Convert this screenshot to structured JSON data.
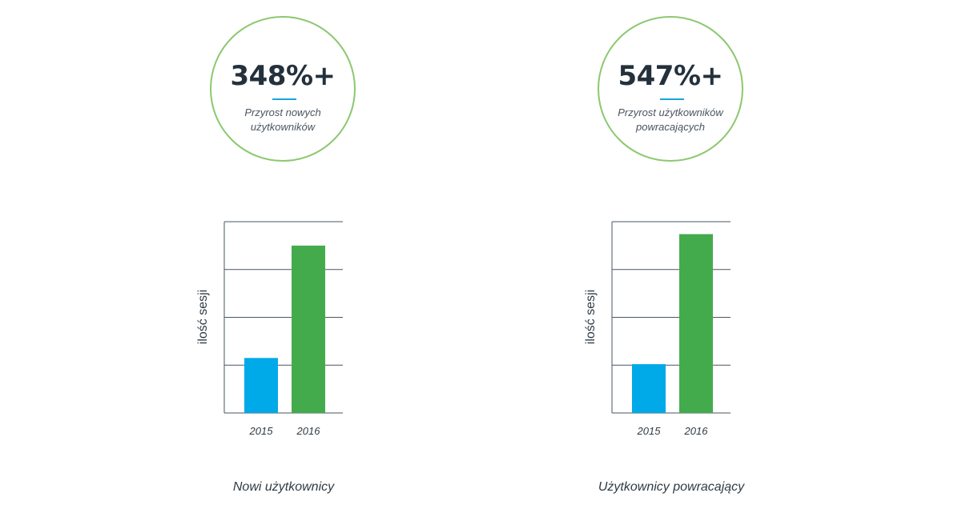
{
  "stats": [
    {
      "value": "348%+",
      "caption": "Przyrost nowych użytkowników"
    },
    {
      "value": "547%+",
      "caption": "Przyrost użytkowników powracających"
    }
  ],
  "colors": {
    "circle": "#8cc870",
    "underline": "#1aa5dd",
    "bar_2015": "#00a9e8",
    "bar_2016": "#44ab4c",
    "grid": "#4a5560"
  },
  "chart_data": [
    {
      "type": "bar",
      "categories": [
        "2015",
        "2016"
      ],
      "values": [
        1.15,
        3.5
      ],
      "colors": [
        "#00a9e8",
        "#44ab4c"
      ],
      "ylabel": "ilość sesji",
      "ylim": [
        0,
        4
      ],
      "grid": true,
      "caption": "Nowi użytkownicy"
    },
    {
      "type": "bar",
      "categories": [
        "2015",
        "2016"
      ],
      "values": [
        1.02,
        3.74
      ],
      "colors": [
        "#00a9e8",
        "#44ab4c"
      ],
      "ylabel": "ilość sesji",
      "ylim": [
        0,
        4
      ],
      "grid": true,
      "caption": "Użytkownicy powracający"
    }
  ]
}
